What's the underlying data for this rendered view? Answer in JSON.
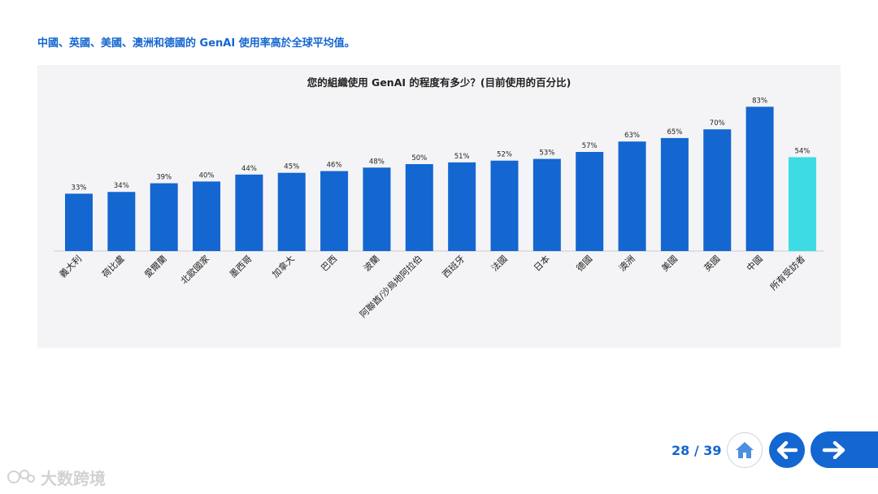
{
  "headline": "中國、英國、美國、澳洲和德國的 GenAI 使用率高於全球平均值。",
  "chart_data": {
    "type": "bar",
    "title": "您的組織使用 GenAI 的程度有多少？(目前使用的百分比)",
    "categories": [
      "義大利",
      "荷比盧",
      "愛爾蘭",
      "北歐國家",
      "墨西哥",
      "加拿大",
      "巴西",
      "波蘭",
      "阿聯酋/沙烏地阿拉伯",
      "西班牙",
      "法國",
      "日本",
      "德國",
      "澳洲",
      "美國",
      "英國",
      "中國",
      "所有受訪者"
    ],
    "values": [
      33,
      34,
      39,
      40,
      44,
      45,
      46,
      48,
      50,
      51,
      52,
      53,
      57,
      63,
      65,
      70,
      83,
      54
    ],
    "value_labels": [
      "33%",
      "34%",
      "39%",
      "40%",
      "44%",
      "45%",
      "46%",
      "48%",
      "50%",
      "51%",
      "52%",
      "53%",
      "57%",
      "63%",
      "65%",
      "70%",
      "83%",
      "54%"
    ],
    "ylim": [
      0,
      100
    ],
    "grid": false,
    "colors": {
      "bar": "#1466d0",
      "highlight": "#3ddbe3"
    },
    "highlight_index": 17
  },
  "footer": {
    "page_indicator": "28 / 39",
    "home_icon": "home-icon",
    "back_icon": "arrow-left-icon",
    "next_icon": "arrow-right-icon"
  },
  "watermark": {
    "text": "大数跨境"
  }
}
